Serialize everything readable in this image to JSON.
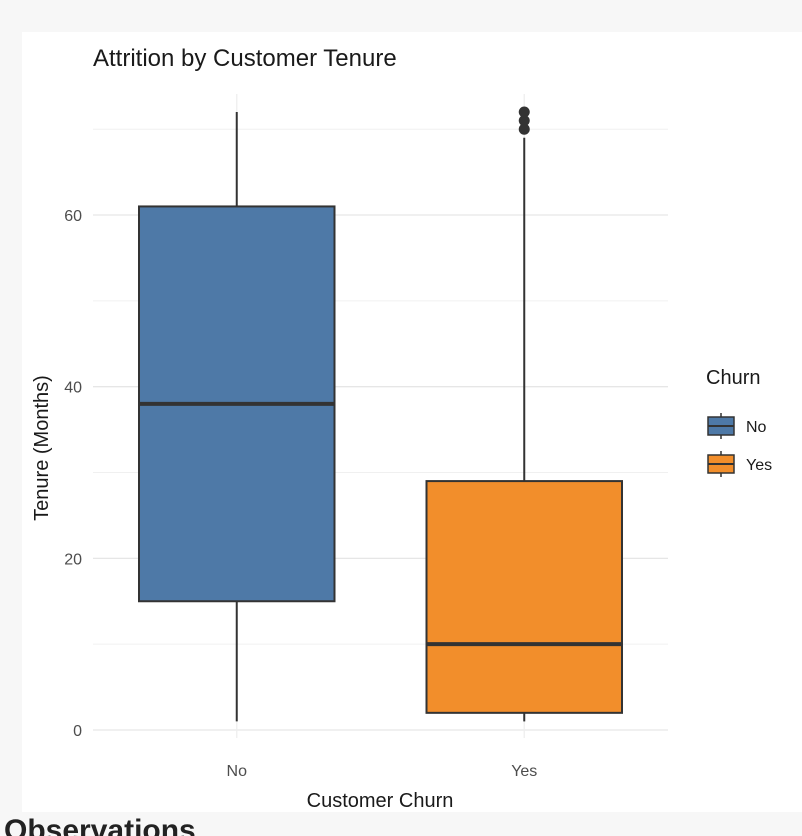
{
  "footer": {
    "heading": "Observations"
  },
  "chart_data": {
    "type": "boxplot",
    "title": "Attrition by Customer Tenure",
    "xlabel": "Customer Churn",
    "ylabel": "Tenure (Months)",
    "ylim": [
      0,
      72
    ],
    "yticks": [
      0,
      20,
      40,
      60
    ],
    "grid": true,
    "legend": {
      "title": "Churn",
      "position": "right"
    },
    "categories": [
      "No",
      "Yes"
    ],
    "boxes": [
      {
        "name": "No",
        "min": 1,
        "q1": 15,
        "median": 38,
        "q3": 61,
        "max": 72,
        "outliers": [],
        "color": "#4e79a7"
      },
      {
        "name": "Yes",
        "min": 1,
        "q1": 2,
        "median": 10,
        "q3": 29,
        "max": 69,
        "outliers": [
          70,
          71,
          72
        ],
        "color": "#f28e2b"
      }
    ]
  }
}
